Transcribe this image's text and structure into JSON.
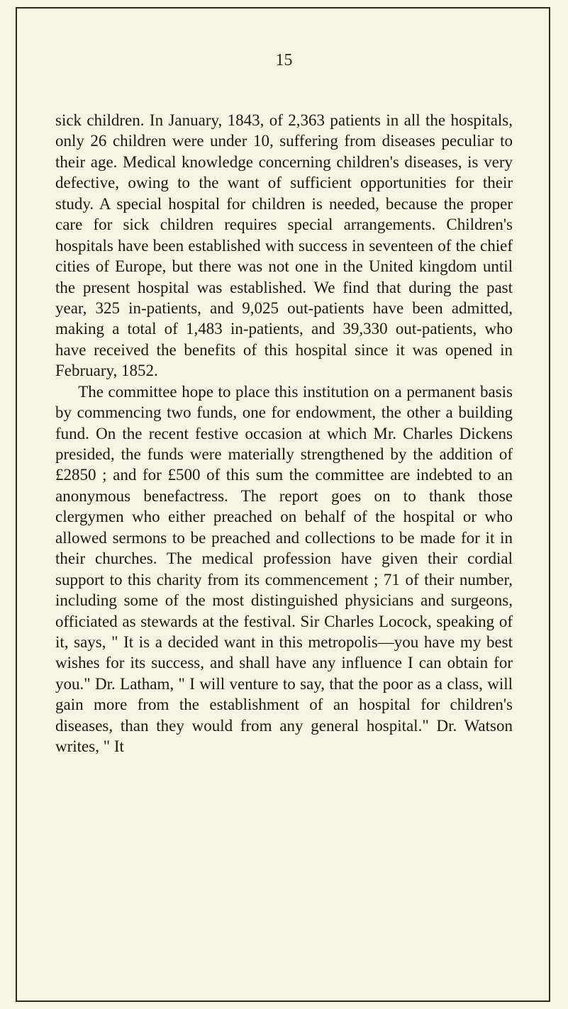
{
  "page": {
    "number": "15",
    "background_color": "#f6f4e2",
    "text_color": "#1a1a12",
    "border_color": "#2a2a1e",
    "font_family": "Georgia, 'Times New Roman', serif",
    "body_fontsize": 23,
    "pagenum_fontsize": 24,
    "line_height": 1.28
  },
  "paragraphs": [
    "sick children. In January, 1843, of 2,363 patients in all the hospitals, only 26 children were under 10, suffering from diseases peculiar to their age. Medical knowledge concerning children's diseases, is very defective, owing to the want of sufficient opportunities for their study. A special hospital for children is needed, because the proper care for sick children requires special arrangements. Children's hospitals have been established with success in seventeen of the chief cities of Europe, but there was not one in the United kingdom until the present hospital was established. We find that during the past year, 325 in-patients, and 9,025 out-patients have been admitted, making a total of 1,483 in-patients, and 39,330 out-patients, who have received the benefits of this hospital since it was opened in February, 1852.",
    "The committee hope to place this institution on a permanent basis by commencing two funds, one for endowment, the other a building fund. On the recent festive occasion at which Mr. Charles Dickens presided, the funds were materially strengthened by the addition of £2850 ; and for £500 of this sum the committee are indebted to an anonymous benefactress. The report goes on to thank those clergymen who either preached on behalf of the hospital or who allowed sermons to be preached and collections to be made for it in their churches. The medical profession have given their cordial support to this charity from its commencement ; 71 of their number, including some of the most distinguished physicians and surgeons, officiated as stewards at the festival. Sir Charles Locock, speaking of it, says, \" It is a decided want in this metropolis—you have my best wishes for its success, and shall have any influence I can obtain for you.\" Dr. Latham, \" I will venture to say, that the poor as a class, will gain more from the establishment of an hospital for children's diseases, than they would from any general hospital.\" Dr. Watson writes, \" It"
  ]
}
